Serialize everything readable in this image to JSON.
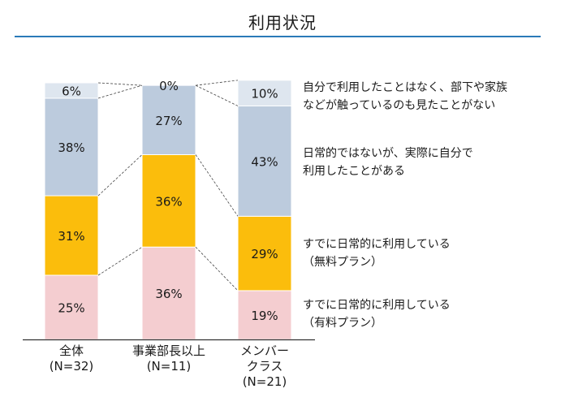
{
  "title": "利用状況",
  "chart_data": {
    "type": "bar",
    "stacked": true,
    "percent": true,
    "categories": [
      {
        "line1": "全体",
        "line2": "(N=32)",
        "line3": ""
      },
      {
        "line1": "事業部長以上",
        "line2": "(N=11)",
        "line3": ""
      },
      {
        "line1": "メンバー",
        "line2": "クラス",
        "line3": "(N=21)"
      }
    ],
    "series": [
      {
        "name": "すでに日常的に利用している\n（有料プラン）",
        "color": "#f4cdd0",
        "values": [
          25,
          36,
          19
        ]
      },
      {
        "name": "すでに日常的に利用している\n（無料プラン）",
        "color": "#fbbd0c",
        "values": [
          31,
          36,
          29
        ]
      },
      {
        "name": "日常的ではないが、実際に自分で\n利用したことがある",
        "color": "#bccbdd",
        "values": [
          38,
          27,
          43
        ]
      },
      {
        "name": "自分で利用したことはなく、部下や家族\nなどが触っているのも見たことがない",
        "color": "#dee6ef",
        "values": [
          6,
          0,
          10
        ]
      }
    ],
    "value_labels": [
      [
        "25%",
        "36%",
        "19%"
      ],
      [
        "31%",
        "36%",
        "29%"
      ],
      [
        "38%",
        "27%",
        "43%"
      ],
      [
        "6%",
        "0%",
        "10%"
      ]
    ],
    "ylim": [
      0,
      100
    ],
    "connector_lines": "dashed",
    "legend_position": "right"
  }
}
